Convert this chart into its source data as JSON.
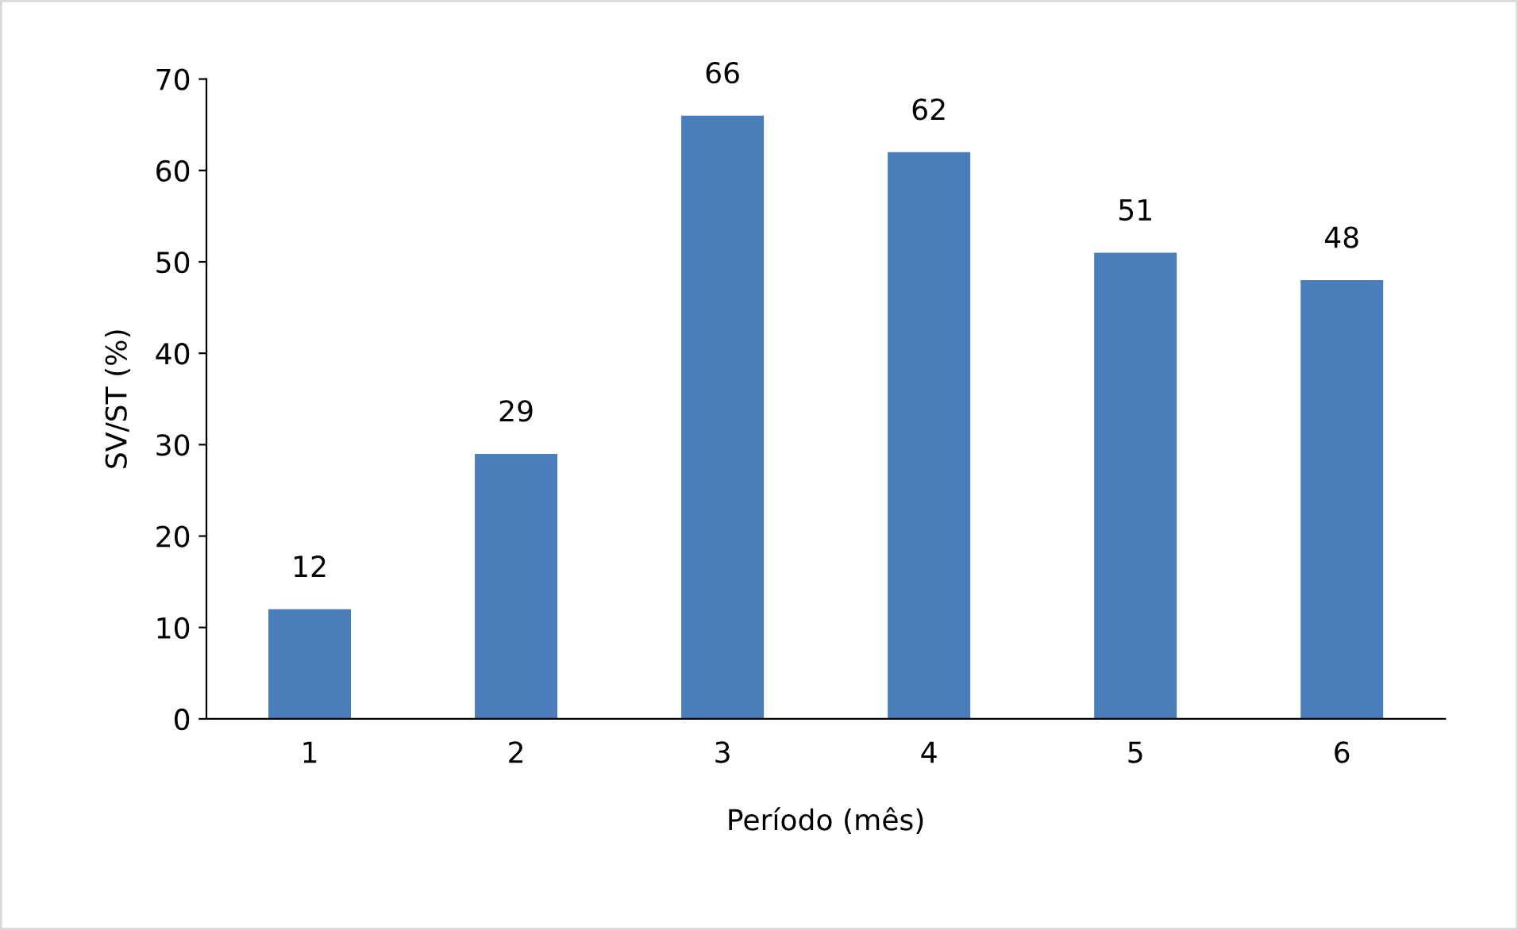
{
  "chart_data": {
    "type": "bar",
    "xlabel": "Período (mês)",
    "ylabel": "SV/ST (%)",
    "categories": [
      "1",
      "2",
      "3",
      "4",
      "5",
      "6"
    ],
    "values": [
      12,
      29,
      66,
      62,
      51,
      48
    ],
    "color": "#4a7ebb",
    "ylim": [
      0,
      70
    ],
    "yticks": [
      0,
      10,
      20,
      30,
      40,
      50,
      60,
      70
    ],
    "data_labels": true,
    "grid": false,
    "legend": false
  }
}
